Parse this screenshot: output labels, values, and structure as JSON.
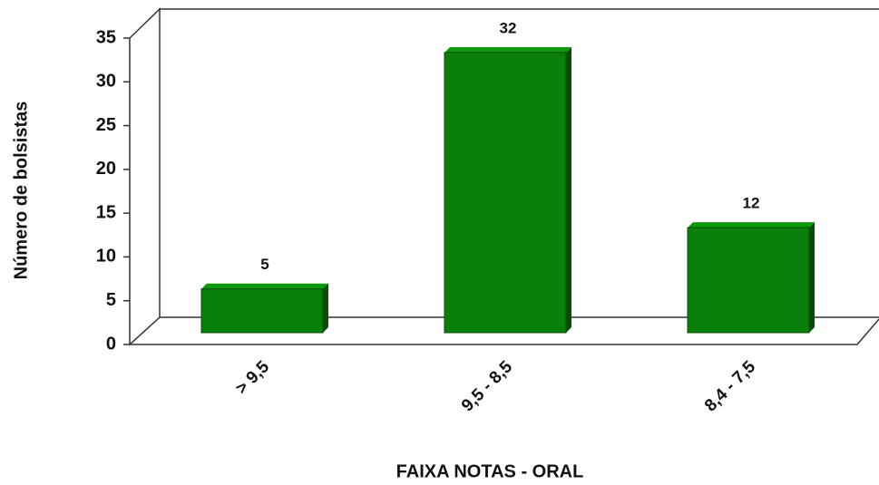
{
  "chart_data": {
    "type": "bar",
    "y_label": "Número de bolsistas",
    "x_label": "FAIXA NOTAS - ORAL",
    "categories": [
      "> 9,5",
      "9,5 - 8,5",
      "8,4 - 7,5"
    ],
    "values": [
      5,
      32,
      12
    ],
    "color": "#0a7f0a",
    "ylim": [
      0,
      35
    ],
    "yticks": [
      0,
      5,
      10,
      15,
      20,
      25,
      30,
      35
    ]
  }
}
